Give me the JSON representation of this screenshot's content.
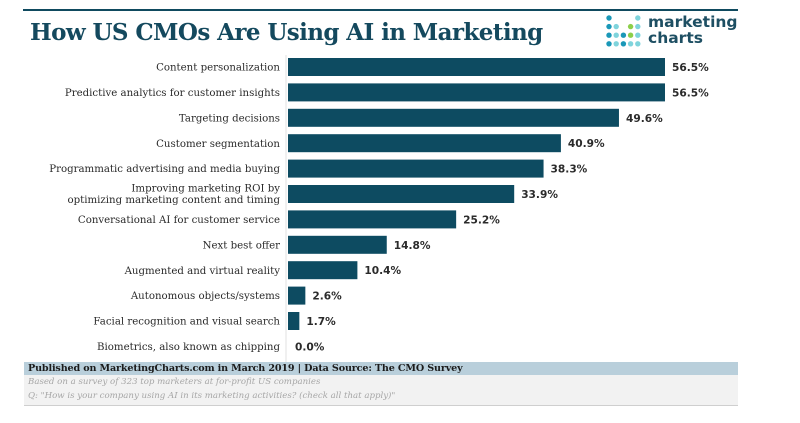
{
  "header": {
    "title": "How US CMOs Are Using AI in Marketing",
    "logo": {
      "icon": "dot-grid-logo-icon",
      "line1": "marketing",
      "line2": "charts",
      "colors": {
        "dark": "#1a98b8",
        "light": "#7fd4dc",
        "green": "#8ccf4a",
        "text": "#1e4f63"
      }
    }
  },
  "chart_data": {
    "type": "bar",
    "orientation": "horizontal",
    "title": "How US CMOs Are Using AI in Marketing",
    "xlabel": "",
    "ylabel": "",
    "xlim": [
      0,
      56.5
    ],
    "grid": false,
    "legend": "none",
    "bar_color": "#0d4b61",
    "categories": [
      "Content personalization",
      "Predictive analytics for customer insights",
      "Targeting decisions",
      "Customer segmentation",
      "Programmatic advertising and media buying",
      "Improving marketing ROI by|optimizing marketing content and timing",
      "Conversational AI for customer service",
      "Next best offer",
      "Augmented and virtual reality",
      "Autonomous objects/systems",
      "Facial recognition and visual search",
      "Biometrics, also known as chipping"
    ],
    "values": [
      56.5,
      56.5,
      49.6,
      40.9,
      38.3,
      33.9,
      25.2,
      14.8,
      10.4,
      2.6,
      1.7,
      0.0
    ],
    "value_labels": [
      "56.5%",
      "56.5%",
      "49.6%",
      "40.9%",
      "38.3%",
      "33.9%",
      "25.2%",
      "14.8%",
      "10.4%",
      "2.6%",
      "1.7%",
      "0.0%"
    ],
    "unit": "%"
  },
  "footer": {
    "published": "Published on MarketingCharts.com in March 2019 | Data Source: The CMO Survey",
    "note1": "Based on a survey of 323 top marketers at for-profit US companies",
    "note2": "Q: \"How is your company using AI in its marketing activities? (check all that apply)\""
  }
}
